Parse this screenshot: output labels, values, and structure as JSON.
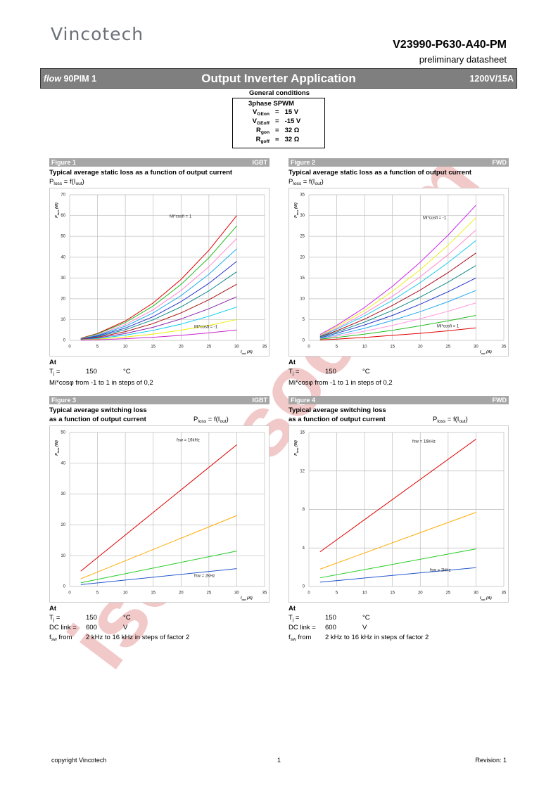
{
  "header": {
    "logo": "Vincotech",
    "part_number": "V23990-P630-A40-PM",
    "doc_type": "preliminary datasheet"
  },
  "banner": {
    "family_italic": "flow",
    "family": "90PIM 1",
    "title": "Output Inverter Application",
    "rating": "1200V/15A"
  },
  "general_conditions": {
    "title": "General conditions",
    "mode": "3phase SPWM",
    "rows": [
      {
        "label": [
          {
            "t": "V"
          },
          {
            "sub": "GEon"
          }
        ],
        "eq": "=",
        "value": "15 V"
      },
      {
        "label": [
          {
            "t": "V"
          },
          {
            "sub": "GEoff"
          }
        ],
        "eq": "=",
        "value": "-15 V"
      },
      {
        "label": [
          {
            "t": "R"
          },
          {
            "sub": "gon"
          }
        ],
        "eq": "=",
        "value": "32 Ω"
      },
      {
        "label": [
          {
            "t": "R"
          },
          {
            "sub": "goff"
          }
        ],
        "eq": "=",
        "value": "32 Ω"
      }
    ]
  },
  "figures": [
    {
      "label": "Figure 1",
      "device": "IGBT",
      "title": [
        "Typical average static loss as a function of output current"
      ],
      "formula": [
        {
          "t": "P"
        },
        {
          "sub": "loss"
        },
        {
          "t": " = f(I"
        },
        {
          "sub": "out"
        },
        {
          "t": ")"
        }
      ],
      "at": {
        "title": "At",
        "rows": [
          {
            "label": [
              {
                "t": "T"
              },
              {
                "sub": "j"
              },
              {
                "t": " ="
              }
            ],
            "value": "150",
            "unit": "°C"
          }
        ],
        "note": "Mi*cosφ from -1 to 1 in steps of 0,2"
      }
    },
    {
      "label": "Figure 2",
      "device": "FWD",
      "title": [
        "Typical average static loss as a function of output current"
      ],
      "formula": [
        {
          "t": "P"
        },
        {
          "sub": "loss"
        },
        {
          "t": " = f(I"
        },
        {
          "sub": "out"
        },
        {
          "t": ")"
        }
      ],
      "at": {
        "title": "At",
        "rows": [
          {
            "label": [
              {
                "t": "T"
              },
              {
                "sub": "j"
              },
              {
                "t": " ="
              }
            ],
            "value": "150",
            "unit": "°C"
          }
        ],
        "note": "Mi*cosφ from -1 to 1 in steps of 0,2"
      }
    },
    {
      "label": "Figure 3",
      "device": "IGBT",
      "title": [
        "Typical average switching loss",
        "as a function of output current"
      ],
      "formula": [
        {
          "t": "P"
        },
        {
          "sub": "loss"
        },
        {
          "t": " = f(I"
        },
        {
          "sub": "out"
        },
        {
          "t": ")"
        }
      ],
      "at": {
        "title": "At",
        "rows": [
          {
            "label": [
              {
                "t": "T"
              },
              {
                "sub": "j"
              },
              {
                "t": " ="
              }
            ],
            "value": "150",
            "unit": "°C"
          },
          {
            "label": [
              {
                "t": "DC link ="
              }
            ],
            "value": "600",
            "unit": "V"
          },
          {
            "label": [
              {
                "t": "f"
              },
              {
                "sub": "sw"
              },
              {
                "t": " from"
              }
            ],
            "value": "2 kHz to 16 kHz in steps of factor 2"
          }
        ]
      }
    },
    {
      "label": "Figure 4",
      "device": "FWD",
      "title": [
        "Typical average switching loss",
        "as a function of output current"
      ],
      "formula": [
        {
          "t": "P"
        },
        {
          "sub": "loss"
        },
        {
          "t": " = f(I"
        },
        {
          "sub": "out"
        },
        {
          "t": ")"
        }
      ],
      "at": {
        "title": "At",
        "rows": [
          {
            "label": [
              {
                "t": "T"
              },
              {
                "sub": "j"
              },
              {
                "t": " ="
              }
            ],
            "value": "150",
            "unit": "°C"
          },
          {
            "label": [
              {
                "t": "DC link ="
              }
            ],
            "value": "600",
            "unit": "V"
          },
          {
            "label": [
              {
                "t": "f"
              },
              {
                "sub": "sw"
              },
              {
                "t": " from"
              }
            ],
            "value": "2 kHz to 16 kHz in steps of factor 2"
          }
        ]
      }
    }
  ],
  "chart_data": [
    {
      "type": "line",
      "x": [
        2,
        5,
        10,
        15,
        20,
        25,
        30
      ],
      "xlim": [
        0,
        35
      ],
      "ylim": [
        0,
        70
      ],
      "xticks": [
        0,
        5,
        10,
        15,
        20,
        25,
        30,
        35
      ],
      "yticks": [
        0,
        10,
        20,
        30,
        40,
        50,
        60,
        70
      ],
      "grid": true,
      "xlabel": [
        {
          "t": "I"
        },
        {
          "sub": "out"
        },
        {
          "t": " (A)"
        }
      ],
      "ylabel": [
        {
          "t": "P"
        },
        {
          "sub": "loss"
        },
        {
          "t": " (W)"
        }
      ],
      "annotations": [
        "Mi*cosfi = 1",
        "Mi*cosfi = -1"
      ],
      "series": [
        {
          "color": "#e00000",
          "values": [
            1.0,
            3.3,
            9.3,
            18,
            29.3,
            43.3,
            60
          ]
        },
        {
          "color": "#22bb22",
          "values": [
            0.9,
            3.1,
            8.6,
            16.5,
            26.9,
            39.7,
            55
          ]
        },
        {
          "color": "#ff88cc",
          "values": [
            0.8,
            2.7,
            7.6,
            14.7,
            24,
            35.4,
            49
          ]
        },
        {
          "color": "#22aaee",
          "values": [
            0.7,
            2.4,
            6.8,
            13.2,
            21.5,
            31.8,
            44
          ]
        },
        {
          "color": "#2233cc",
          "values": [
            0.6,
            2.1,
            5.9,
            11.4,
            18.6,
            27.4,
            38
          ]
        },
        {
          "color": "#118888",
          "values": [
            0.6,
            1.8,
            5.1,
            9.9,
            16.1,
            23.8,
            33
          ]
        },
        {
          "color": "#aa1111",
          "values": [
            0.5,
            1.5,
            4.2,
            8.1,
            13.2,
            19.5,
            27
          ]
        },
        {
          "color": "#8822aa",
          "values": [
            0.4,
            1.2,
            3.3,
            6.3,
            10.3,
            15.2,
            21
          ]
        },
        {
          "color": "#00ccee",
          "values": [
            0.3,
            0.9,
            2.5,
            4.8,
            7.8,
            11.6,
            16
          ]
        },
        {
          "color": "#eeee00",
          "values": [
            0.2,
            0.6,
            1.6,
            3,
            4.9,
            7.2,
            10
          ]
        },
        {
          "color": "#cc22cc",
          "values": [
            0.1,
            0.3,
            0.8,
            1.5,
            2.4,
            3.6,
            5
          ]
        }
      ]
    },
    {
      "type": "line",
      "x": [
        2,
        5,
        10,
        15,
        20,
        25,
        30
      ],
      "xlim": [
        0,
        35
      ],
      "ylim": [
        0,
        35
      ],
      "xticks": [
        0,
        5,
        10,
        15,
        20,
        25,
        30,
        35
      ],
      "yticks": [
        0,
        5,
        10,
        15,
        20,
        25,
        30,
        35
      ],
      "grid": true,
      "xlabel": [
        {
          "t": "I"
        },
        {
          "sub": "out"
        },
        {
          "t": " (A)"
        }
      ],
      "ylabel": [
        {
          "t": "P"
        },
        {
          "sub": "loss"
        },
        {
          "t": " (W)"
        }
      ],
      "annotations": [
        "Mi*cosfi = -1",
        "Mi*cosfi = 1"
      ],
      "series": [
        {
          "color": "#cc22ee",
          "values": [
            1.4,
            3.6,
            7.9,
            13,
            18.8,
            25.3,
            32.5
          ]
        },
        {
          "color": "#eeee22",
          "values": [
            1.2,
            3.3,
            7.2,
            11.8,
            17,
            22.9,
            29.5
          ]
        },
        {
          "color": "#ff88cc",
          "values": [
            1.1,
            2.9,
            6.5,
            10.6,
            15.3,
            20.6,
            26.5
          ]
        },
        {
          "color": "#22ccee",
          "values": [
            1,
            2.7,
            5.9,
            9.6,
            13.9,
            18.7,
            24
          ]
        },
        {
          "color": "#aa1122",
          "values": [
            0.9,
            2.3,
            5.1,
            8.4,
            12.1,
            16.3,
            21
          ]
        },
        {
          "color": "#118888",
          "values": [
            0.8,
            2,
            4.4,
            7.2,
            10.4,
            14,
            18
          ]
        },
        {
          "color": "#2233cc",
          "values": [
            0.6,
            1.7,
            3.7,
            6,
            8.7,
            11.7,
            15
          ]
        },
        {
          "color": "#22aaee",
          "values": [
            0.5,
            1.3,
            2.9,
            4.8,
            6.9,
            9.3,
            12
          ]
        },
        {
          "color": "#ff99dd",
          "values": [
            0.4,
            1,
            2.2,
            3.6,
            5.2,
            7,
            9
          ]
        },
        {
          "color": "#22bb22",
          "values": [
            0.3,
            0.7,
            1.5,
            2.4,
            3.5,
            4.7,
            6
          ]
        },
        {
          "color": "#e00000",
          "values": [
            0.1,
            0.3,
            0.7,
            1.2,
            1.7,
            2.3,
            3
          ]
        }
      ]
    },
    {
      "type": "line",
      "x": [
        2,
        30
      ],
      "xlim": [
        0,
        35
      ],
      "ylim": [
        0,
        50
      ],
      "xticks": [
        0,
        5,
        10,
        15,
        20,
        25,
        30,
        35
      ],
      "yticks": [
        0,
        10,
        20,
        30,
        40,
        50
      ],
      "grid": true,
      "xlabel": [
        {
          "t": "I"
        },
        {
          "sub": "out"
        },
        {
          "t": " (A)"
        }
      ],
      "ylabel": [
        {
          "t": "P"
        },
        {
          "sub": "loss"
        },
        {
          "t": " (W)"
        }
      ],
      "annotations": [
        "fsw = 16kHz",
        "fsw = 2kHz"
      ],
      "series": [
        {
          "color": "#e00000",
          "values": [
            5,
            46
          ]
        },
        {
          "color": "#ffaa00",
          "values": [
            2.5,
            23
          ]
        },
        {
          "color": "#22cc22",
          "values": [
            1.2,
            11.5
          ]
        },
        {
          "color": "#2255cc",
          "values": [
            0.6,
            5.8
          ]
        }
      ]
    },
    {
      "type": "line",
      "x": [
        2,
        30
      ],
      "xlim": [
        0,
        35
      ],
      "ylim": [
        0,
        16
      ],
      "xticks": [
        0,
        5,
        10,
        15,
        20,
        25,
        30,
        35
      ],
      "yticks": [
        0,
        4,
        8,
        12,
        16
      ],
      "grid": true,
      "xlabel": [
        {
          "t": "I"
        },
        {
          "sub": "out"
        },
        {
          "t": " (A)"
        }
      ],
      "ylabel": [
        {
          "t": "P"
        },
        {
          "sub": "loss"
        },
        {
          "t": " (W)"
        }
      ],
      "annotations": [
        "fsw = 16kHz",
        "fsw = 2kHz"
      ],
      "series": [
        {
          "color": "#e00000",
          "values": [
            3.6,
            15.3
          ]
        },
        {
          "color": "#ffaa00",
          "values": [
            1.8,
            7.7
          ]
        },
        {
          "color": "#22cc22",
          "values": [
            0.9,
            3.9
          ]
        },
        {
          "color": "#2255cc",
          "values": [
            0.45,
            1.95
          ]
        }
      ]
    }
  ],
  "footer": {
    "copyright": "copyright Vincotech",
    "page": "1",
    "revision": "Revision: 1"
  },
  "watermark": "isee.sisoo.com"
}
